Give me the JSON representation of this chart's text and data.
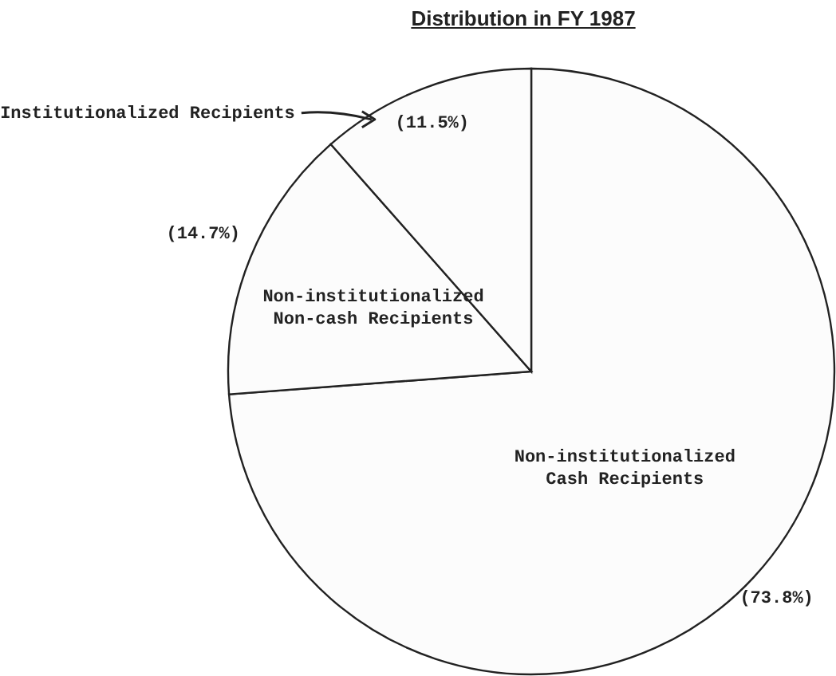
{
  "chart_data": {
    "type": "pie",
    "title": "Distribution in FY 1987",
    "categories": [
      "Non-institutionalized Cash Recipients",
      "Non-institutionalized Non-cash Recipients",
      "Institutionalized Recipients"
    ],
    "values": [
      73.8,
      14.7,
      11.5
    ],
    "value_labels": [
      "(73.8%)",
      "(14.7%)",
      "(11.5%)"
    ],
    "colors": [
      "#fcfcfc",
      "#fcfcfc",
      "#fcfcfc"
    ],
    "legend": false
  }
}
